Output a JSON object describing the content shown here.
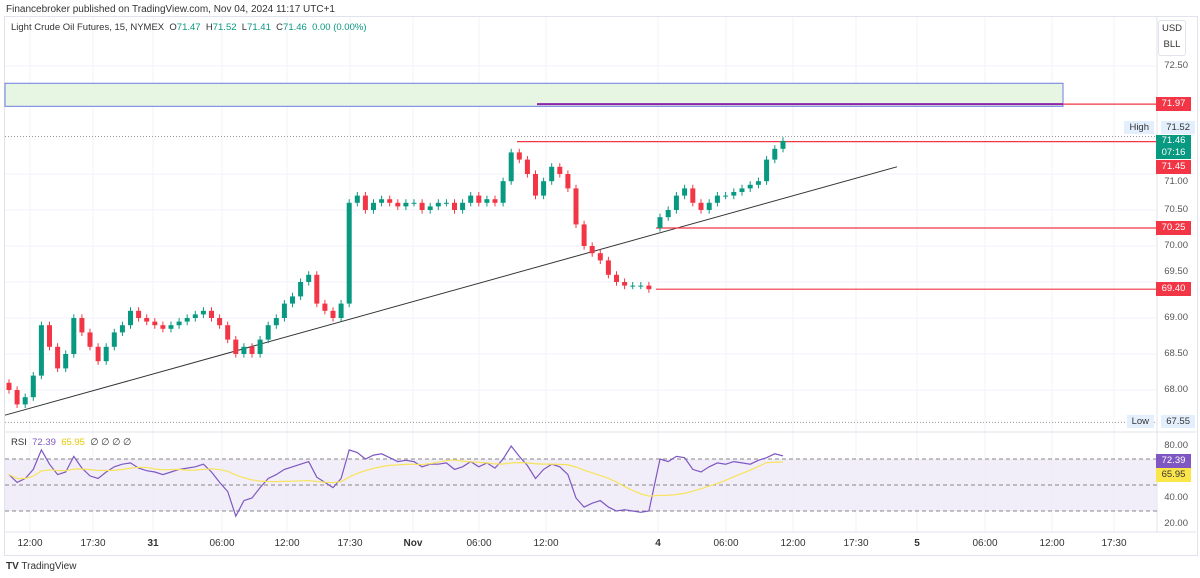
{
  "header": {
    "published": "Financebroker published on TradingView.com, Nov 04, 2024 11:17 UTC+1"
  },
  "legend": {
    "symbol": "Light Crude Oil Futures, 15, NYMEX",
    "o_label": "O",
    "o": "71.47",
    "h_label": "H",
    "h": "71.52",
    "l_label": "L",
    "l": "71.41",
    "c_label": "C",
    "c": "71.46",
    "change": "0.00 (0.00%)"
  },
  "currency": {
    "line1": "USD",
    "line2": "BLL"
  },
  "colors": {
    "up": "#089981",
    "down": "#f23645",
    "rsi": "#7e57c2",
    "rsi_ma": "#f7e35b",
    "zone": "#e6f6e3",
    "zone_border": "#6d7ee0"
  },
  "rsi_legend": {
    "label": "RSI",
    "value": "72.39",
    "ma": "65.95",
    "extra": "∅ ∅ ∅ ∅"
  },
  "brand": "TradingView",
  "chart_data": {
    "type": "candlestick",
    "title": "Light Crude Oil Futures, 15, NYMEX",
    "ylim": [
      67.3,
      72.8
    ],
    "yticks": [
      "72.50",
      "71.00",
      "70.50",
      "70.00",
      "69.50",
      "69.00",
      "68.50",
      "68.00"
    ],
    "ytick_values": [
      72.5,
      71.0,
      70.5,
      70.0,
      69.5,
      69.0,
      68.5,
      68.0
    ],
    "xticks": [
      "12:00",
      "17:30",
      "31",
      "06:00",
      "12:00",
      "17:30",
      "Nov",
      "06:00",
      "12:00",
      "4",
      "06:00",
      "12:00",
      "17:30",
      "5",
      "06:00",
      "12:00",
      "17:30"
    ],
    "session1_closes": [
      68.0,
      67.8,
      67.9,
      68.2,
      68.9,
      68.6,
      68.3,
      68.5,
      69.0,
      68.8,
      68.6,
      68.4,
      68.6,
      68.8,
      68.9,
      69.1,
      69.0,
      68.95,
      68.9,
      68.85,
      68.9,
      68.95,
      69.0,
      69.05,
      69.1,
      69.0,
      68.9,
      68.7,
      68.5,
      68.6,
      68.5,
      68.7,
      68.9,
      69.0,
      69.2,
      69.3,
      69.5,
      69.6,
      69.2,
      69.1,
      69.0,
      69.2,
      70.6,
      70.7,
      70.5,
      70.6,
      70.65,
      70.6,
      70.55,
      70.6,
      70.6,
      70.5,
      70.55,
      70.6,
      70.6,
      70.5,
      70.6,
      70.7,
      70.6,
      70.65,
      70.6,
      70.9,
      71.3,
      71.2,
      71.0,
      70.7,
      70.9,
      71.1,
      71.0,
      70.8,
      70.3,
      70.0,
      69.9,
      69.8,
      69.6,
      69.5,
      69.45,
      69.45,
      69.45,
      69.4
    ],
    "session2_closes": [
      70.4,
      70.5,
      70.7,
      70.8,
      70.6,
      70.5,
      70.6,
      70.7,
      70.7,
      70.75,
      70.8,
      70.85,
      70.9,
      71.2,
      71.35,
      71.46
    ],
    "levels": [
      {
        "price": 71.97,
        "label": "71.97"
      },
      {
        "price": 71.45,
        "label": "71.45"
      },
      {
        "price": 70.25,
        "label": "70.25"
      },
      {
        "price": 69.4,
        "label": "69.40"
      }
    ],
    "zone": [
      71.94,
      72.26
    ],
    "trendline": [
      [
        0,
        67.65
      ],
      [
        1,
        71.1
      ]
    ],
    "last_price": {
      "value": "71.46",
      "countdown": "07:16"
    },
    "high": {
      "label": "High",
      "value": "71.52",
      "price": 71.52
    },
    "low": {
      "label": "Low",
      "value": "67.55",
      "price": 67.55
    },
    "rsi": {
      "yticks": [
        "80.00",
        "40.00",
        "20.00"
      ],
      "ytick_values": [
        80,
        40,
        20
      ],
      "bands": [
        70,
        50,
        30
      ],
      "session1": [
        58,
        52,
        55,
        62,
        77,
        66,
        58,
        60,
        72,
        63,
        57,
        55,
        60,
        64,
        66,
        67,
        63,
        61,
        60,
        58,
        60,
        62,
        63,
        64,
        66,
        60,
        52,
        45,
        26,
        38,
        40,
        48,
        55,
        58,
        62,
        64,
        66,
        68,
        56,
        52,
        48,
        55,
        77,
        75,
        70,
        73,
        74,
        71,
        68,
        69,
        68,
        64,
        66,
        66,
        67,
        62,
        64,
        68,
        64,
        67,
        63,
        70,
        80,
        72,
        65,
        55,
        62,
        66,
        64,
        58,
        40,
        33,
        36,
        38,
        33,
        30,
        31,
        30,
        29,
        30
      ],
      "session2": [
        70,
        68,
        72,
        71,
        62,
        60,
        64,
        67,
        66,
        68,
        67,
        66,
        69,
        71,
        74,
        72.39
      ]
    }
  }
}
